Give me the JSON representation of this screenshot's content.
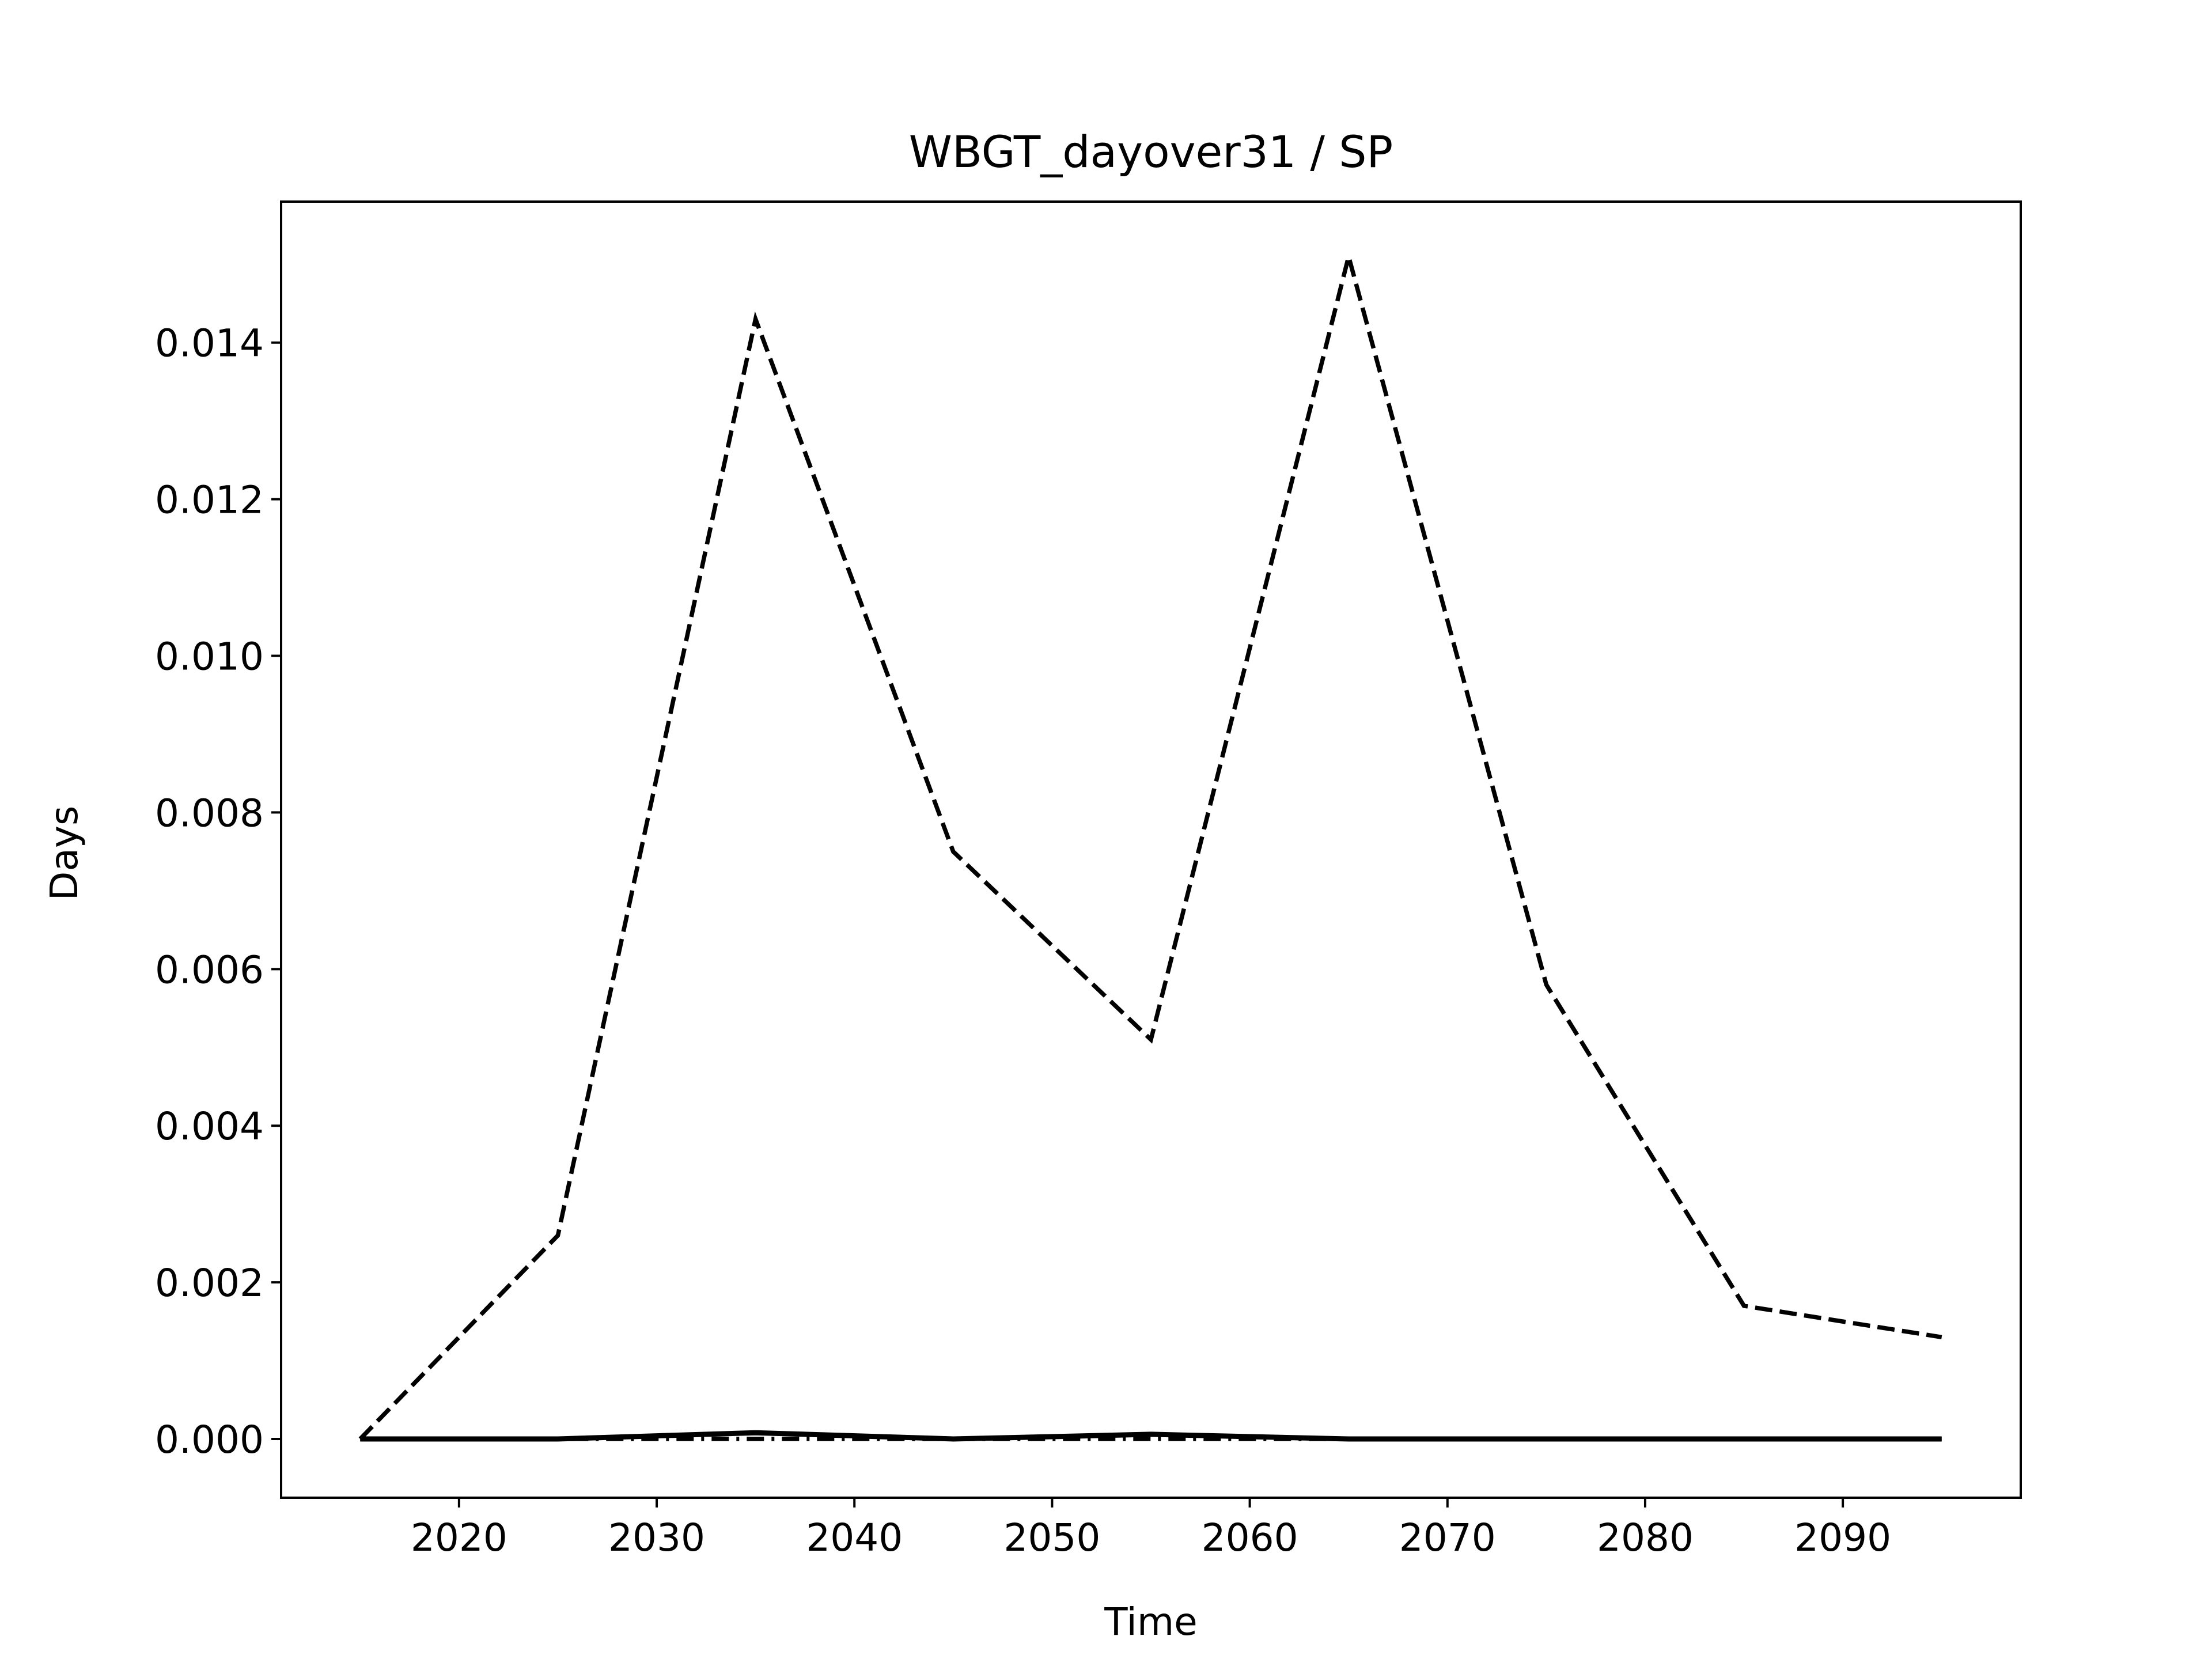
{
  "chart_data": {
    "type": "line",
    "title": "WBGT_dayover31 / SP",
    "xlabel": "Time",
    "ylabel": "Days",
    "xlim": [
      2011,
      2099
    ],
    "ylim": [
      -0.00075,
      0.0158
    ],
    "xticks": [
      2020,
      2030,
      2040,
      2050,
      2060,
      2070,
      2080,
      2090
    ],
    "yticks": [
      0,
      0.002,
      0.004,
      0.006,
      0.008,
      0.01,
      0.012,
      0.014
    ],
    "ytick_labels": [
      "0.000",
      "0.002",
      "0.004",
      "0.006",
      "0.008",
      "0.010",
      "0.012",
      "0.014"
    ],
    "grid": false,
    "x": [
      2015,
      2025,
      2035,
      2045,
      2055,
      2065,
      2075,
      2085,
      2095
    ],
    "series": [
      {
        "style": "solid",
        "color": "#000000",
        "values": [
          0.0,
          0.0,
          8e-05,
          0.0,
          6e-05,
          0.0,
          0.0,
          0.0,
          0.0
        ]
      },
      {
        "style": "dashed",
        "color": "#000000",
        "values": [
          0.0,
          0.0026,
          0.0143,
          0.0075,
          0.0051,
          0.0151,
          0.0058,
          0.0017,
          0.0013
        ]
      },
      {
        "style": "dashdot",
        "color": "#000000",
        "values": [
          0.0,
          0.0,
          0.0,
          0.0,
          0.0,
          0.0,
          0.0,
          0.0,
          0.0
        ]
      }
    ]
  }
}
